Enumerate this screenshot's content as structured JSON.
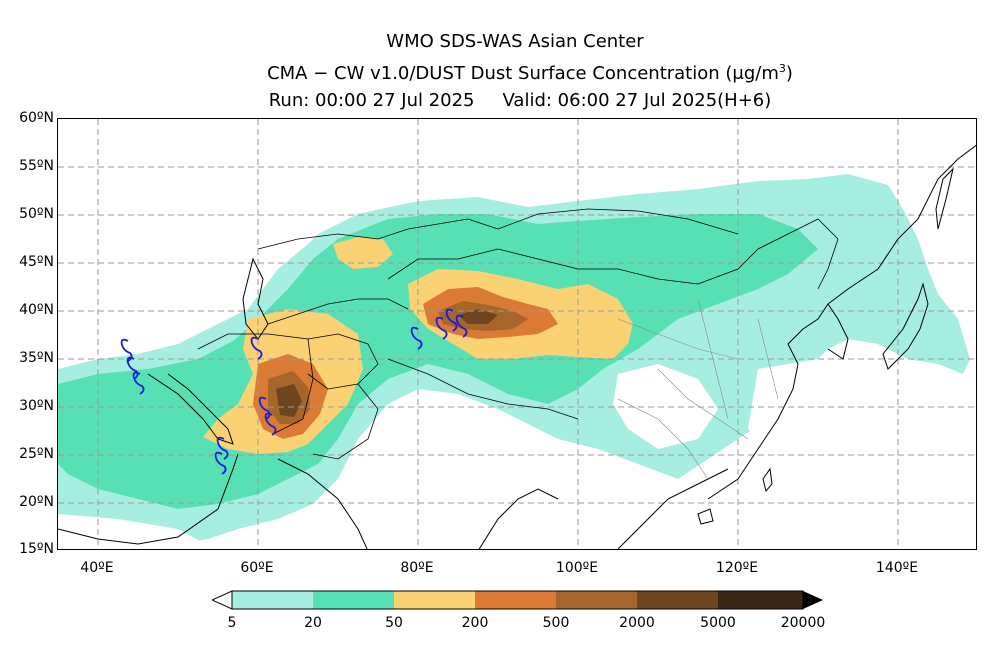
{
  "title": {
    "line1": "WMO SDS-WAS Asian Center",
    "line2_text": "CMA − CW v1.0/DUST Dust Surface Concentration (μg/m",
    "line2_sup": "3",
    "line2_close": ")",
    "run": "Run: 00:00 27 Jul 2025",
    "valid": "Valid: 06:00 27 Jul 2025(H+6)"
  },
  "axes": {
    "lat_labels": [
      "60ºN",
      "55ºN",
      "50ºN",
      "45ºN",
      "40ºN",
      "35ºN",
      "30ºN",
      "25ºN",
      "20ºN",
      "15ºN"
    ],
    "lon_labels": [
      "40ºE",
      "60ºE",
      "80ºE",
      "100ºE",
      "120ºE",
      "140ºE"
    ],
    "lat_values": [
      60,
      55,
      50,
      45,
      40,
      35,
      30,
      25,
      20,
      15
    ],
    "lon_values": [
      40,
      60,
      80,
      100,
      120,
      140
    ],
    "lon_range": [
      35,
      150
    ],
    "lat_range": [
      15,
      60
    ],
    "grid": "dashed"
  },
  "colorbar": {
    "ticks": [
      "5",
      "20",
      "50",
      "200",
      "500",
      "2000",
      "5000",
      "20000"
    ],
    "colors": [
      "#a7eee2",
      "#56e0b4",
      "#fbd273",
      "#f3b263",
      "#db7a34",
      "#a5652b",
      "#6f4520",
      "#3b2515"
    ],
    "extend": "both"
  },
  "map": {
    "shading_colors": {
      "c1": "#a7eee2",
      "c2": "#56e0b4",
      "c3": "#fbd273",
      "c4": "#db7a34",
      "c5": "#a5652b",
      "c6": "#6f4520",
      "c7": "#3b2515"
    },
    "front_color": "#1a1adc"
  }
}
